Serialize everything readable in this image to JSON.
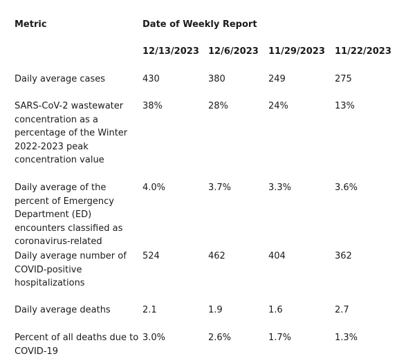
{
  "table": {
    "metric_header": "Metric",
    "date_header": "Date of Weekly Report",
    "dates": [
      "12/13/2023",
      "12/6/2023",
      "11/29/2023",
      "11/22/2023"
    ],
    "rows": [
      {
        "metric": "Daily average cases",
        "values": [
          "430",
          "380",
          "249",
          "275"
        ]
      },
      {
        "metric": "SARS-CoV-2 wastewater concentration as a percentage of the Winter 2022-2023 peak concentration value",
        "values": [
          "38%",
          "28%",
          "24%",
          "13%"
        ]
      },
      {
        "metric": "Daily average of the percent of Emergency Department (ED) encounters classified as coronavirus-related",
        "values": [
          "4.0%",
          "3.7%",
          "3.3%",
          "3.6%"
        ]
      },
      {
        "metric": "Daily average number of COVID-positive hospitalizations",
        "values": [
          "524",
          "462",
          "404",
          "362"
        ]
      },
      {
        "metric": "Daily average deaths",
        "values": [
          "2.1",
          "1.9",
          "1.6",
          "2.7"
        ]
      },
      {
        "metric": "Percent of all deaths due to COVID-19",
        "values": [
          "3.0%",
          "2.6%",
          "1.7%",
          "1.3%"
        ]
      }
    ]
  }
}
